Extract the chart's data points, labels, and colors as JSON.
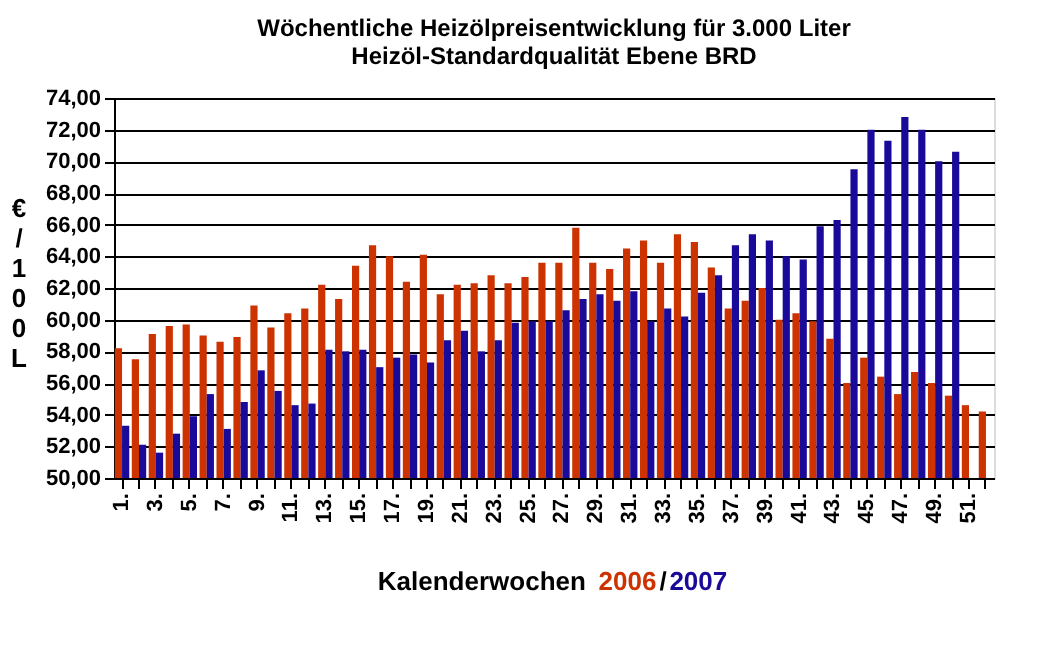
{
  "chart_data": {
    "type": "bar",
    "title": [
      "Wöchentliche Heizölpreisentwicklung für 3.000 Liter",
      "Heizöl-Standardqualität Ebene BRD"
    ],
    "xlabel": "Kalenderwochen",
    "ylabel": "€/100L",
    "categories": [
      "1.",
      null,
      "3.",
      null,
      "5.",
      null,
      "7.",
      null,
      "9.",
      null,
      "11.",
      null,
      "13.",
      null,
      "15.",
      null,
      "17.",
      null,
      "19.",
      null,
      "21.",
      null,
      "23.",
      null,
      "25.",
      null,
      "27.",
      null,
      "29.",
      null,
      "31.",
      null,
      "33.",
      null,
      "35.",
      null,
      "37.",
      null,
      "39.",
      null,
      "41.",
      null,
      "43.",
      null,
      "45.",
      null,
      "47.",
      null,
      "49.",
      null,
      "51.",
      null
    ],
    "series": [
      {
        "name": "2006",
        "color": "#cc3300",
        "values": [
          58.2,
          57.5,
          59.1,
          59.6,
          59.7,
          59.0,
          58.6,
          58.9,
          60.9,
          59.5,
          60.4,
          60.7,
          62.2,
          61.3,
          63.4,
          64.7,
          64.0,
          62.4,
          64.1,
          61.6,
          62.2,
          62.3,
          62.8,
          62.3,
          62.7,
          63.6,
          63.6,
          65.8,
          63.6,
          63.2,
          64.5,
          65.0,
          63.6,
          65.4,
          64.9,
          63.3,
          60.7,
          61.2,
          62.0,
          60.0,
          60.4,
          59.9,
          58.8,
          56.0,
          57.6,
          56.4,
          55.3,
          56.7,
          56.0,
          55.2,
          54.6,
          54.2
        ]
      },
      {
        "name": "2007",
        "color": "#1a0a99",
        "values": [
          53.3,
          52.1,
          51.6,
          52.8,
          53.9,
          55.3,
          53.1,
          54.8,
          56.8,
          55.5,
          54.6,
          54.7,
          58.1,
          58.0,
          58.1,
          57.0,
          57.6,
          57.8,
          57.3,
          58.7,
          59.3,
          58.0,
          58.7,
          59.8,
          59.9,
          59.9,
          60.6,
          61.3,
          61.6,
          61.2,
          61.8,
          59.9,
          60.7,
          60.2,
          61.7,
          62.8,
          64.7,
          65.4,
          65.0,
          64.0,
          63.8,
          65.9,
          66.3,
          69.5,
          72.0,
          71.3,
          72.8,
          72.0,
          70.0,
          70.6,
          null,
          null
        ]
      }
    ],
    "ylim": [
      50,
      74
    ],
    "yticks": [
      {
        "value": 50,
        "label": "50,00"
      },
      {
        "value": 52,
        "label": "52,00"
      },
      {
        "value": 54,
        "label": "54,00"
      },
      {
        "value": 56,
        "label": "56,00"
      },
      {
        "value": 58,
        "label": "58,00"
      },
      {
        "value": 60,
        "label": "60,00"
      },
      {
        "value": 62,
        "label": "62,00"
      },
      {
        "value": 64,
        "label": "64,00"
      },
      {
        "value": 66,
        "label": "66,00"
      },
      {
        "value": 68,
        "label": "68,00"
      },
      {
        "value": 70,
        "label": "70,00"
      },
      {
        "value": 72,
        "label": "72,00"
      },
      {
        "value": 74,
        "label": "74,00"
      }
    ],
    "annotations": [
      "/"
    ],
    "grid": "y",
    "legend": "bottom"
  }
}
